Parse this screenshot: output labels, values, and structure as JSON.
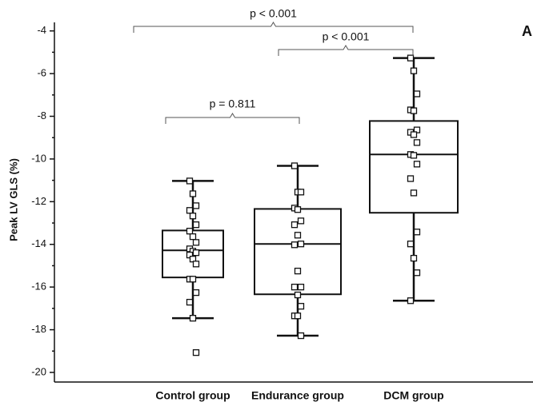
{
  "chart_data": {
    "type": "box",
    "ylabel": "Peak LV GLS (%)",
    "panel_label": "A",
    "categories": [
      "Control group",
      "Endurance group",
      "DCM group"
    ],
    "boxes": [
      {
        "whisker_high": -11.03,
        "q3": -13.35,
        "median": -14.28,
        "q1": -15.55,
        "whisker_low": -17.46,
        "points": [
          -11.03,
          -11.63,
          -12.19,
          -12.41,
          -12.67,
          -13.08,
          -13.38,
          -13.64,
          -13.91,
          -14.21,
          -14.32,
          -14.39,
          -14.5,
          -14.69,
          -14.92,
          -15.63,
          -15.63,
          -16.26,
          -16.71,
          -17.46,
          -19.07
        ]
      },
      {
        "whisker_high": -10.32,
        "q3": -12.34,
        "median": -13.98,
        "q1": -16.34,
        "whisker_low": -18.28,
        "points": [
          -10.32,
          -11.55,
          -11.55,
          -12.3,
          -12.37,
          -12.9,
          -13.08,
          -13.57,
          -13.98,
          -14.02,
          -15.25,
          -16.0,
          -16.0,
          -16.37,
          -16.9,
          -17.35,
          -17.35,
          -18.28
        ]
      },
      {
        "whisker_high": -5.27,
        "q3": -8.22,
        "median": -9.79,
        "q1": -12.52,
        "whisker_low": -16.64,
        "points": [
          -5.27,
          -5.87,
          -6.95,
          -7.7,
          -7.74,
          -8.64,
          -8.75,
          -8.86,
          -9.23,
          -9.79,
          -9.83,
          -10.24,
          -10.92,
          -11.59,
          -13.42,
          -13.98,
          -14.65,
          -15.33,
          -16.64
        ]
      }
    ],
    "annotations": [
      "p < 0.001",
      "p < 0.001",
      "p = 0.811"
    ],
    "ylim": [
      -20.45,
      -3.6
    ],
    "yticks": [
      -4,
      -6,
      -8,
      -10,
      -12,
      -14,
      -16,
      -18,
      -20
    ],
    "yminorticks": [
      -5,
      -7,
      -9,
      -11,
      -13,
      -15,
      -17,
      -19
    ]
  }
}
